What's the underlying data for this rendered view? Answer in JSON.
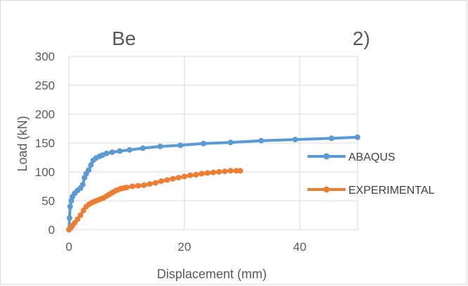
{
  "chart_data": {
    "type": "scatter",
    "title_visible_fragments": [
      "Be",
      "2)"
    ],
    "xlabel": "Displacement (mm)",
    "ylabel": "Load (kN)",
    "xlim": [
      0,
      50
    ],
    "ylim": [
      0,
      300
    ],
    "x_ticks": [
      "0",
      "20",
      "40"
    ],
    "y_ticks": [
      "0",
      "50",
      "100",
      "150",
      "200",
      "250",
      "300"
    ],
    "grid": true,
    "legend_position": "right",
    "series": [
      {
        "name": "ABAQUS",
        "color": "#5b9bd5",
        "points": [
          [
            0,
            0
          ],
          [
            0.1,
            20
          ],
          [
            0.2,
            40
          ],
          [
            0.4,
            50
          ],
          [
            0.6,
            57
          ],
          [
            1.0,
            63
          ],
          [
            1.5,
            68
          ],
          [
            2.0,
            72
          ],
          [
            2.4,
            78
          ],
          [
            2.7,
            90
          ],
          [
            3.0,
            97
          ],
          [
            3.4,
            103
          ],
          [
            3.8,
            112
          ],
          [
            4.2,
            120
          ],
          [
            4.7,
            124
          ],
          [
            5.3,
            127
          ],
          [
            5.8,
            129
          ],
          [
            6.5,
            132
          ],
          [
            7.5,
            134
          ],
          [
            8.8,
            136
          ],
          [
            10.5,
            138
          ],
          [
            12.8,
            141
          ],
          [
            15.8,
            144
          ],
          [
            19.3,
            146
          ],
          [
            23.3,
            149
          ],
          [
            28.0,
            151
          ],
          [
            33.3,
            154
          ],
          [
            39.2,
            156
          ],
          [
            45.5,
            158
          ],
          [
            50.0,
            160
          ]
        ]
      },
      {
        "name": "EXPERIMENTAL",
        "color": "#ed7d31",
        "points": [
          [
            0,
            0
          ],
          [
            0.3,
            3
          ],
          [
            0.6,
            7
          ],
          [
            1.0,
            12
          ],
          [
            1.5,
            18
          ],
          [
            2.0,
            25
          ],
          [
            2.5,
            33
          ],
          [
            3.0,
            40
          ],
          [
            3.5,
            44
          ],
          [
            4.0,
            47
          ],
          [
            4.5,
            49
          ],
          [
            5.0,
            51
          ],
          [
            5.5,
            53
          ],
          [
            6.0,
            55
          ],
          [
            6.5,
            58
          ],
          [
            7.0,
            61
          ],
          [
            7.5,
            64
          ],
          [
            8.0,
            67
          ],
          [
            8.5,
            69
          ],
          [
            9.0,
            71
          ],
          [
            9.5,
            72
          ],
          [
            10.0,
            73
          ],
          [
            11.0,
            75
          ],
          [
            12.0,
            76
          ],
          [
            13.0,
            77
          ],
          [
            14.0,
            79
          ],
          [
            15.0,
            81
          ],
          [
            16.0,
            84
          ],
          [
            17.0,
            86
          ],
          [
            18.0,
            88
          ],
          [
            19.0,
            90
          ],
          [
            20.0,
            92
          ],
          [
            21.0,
            94
          ],
          [
            22.0,
            95
          ],
          [
            23.0,
            97
          ],
          [
            24.0,
            98
          ],
          [
            25.0,
            99
          ],
          [
            26.0,
            100
          ],
          [
            27.0,
            101
          ],
          [
            28.0,
            102
          ],
          [
            29.0,
            102
          ],
          [
            29.7,
            102
          ]
        ]
      }
    ]
  }
}
